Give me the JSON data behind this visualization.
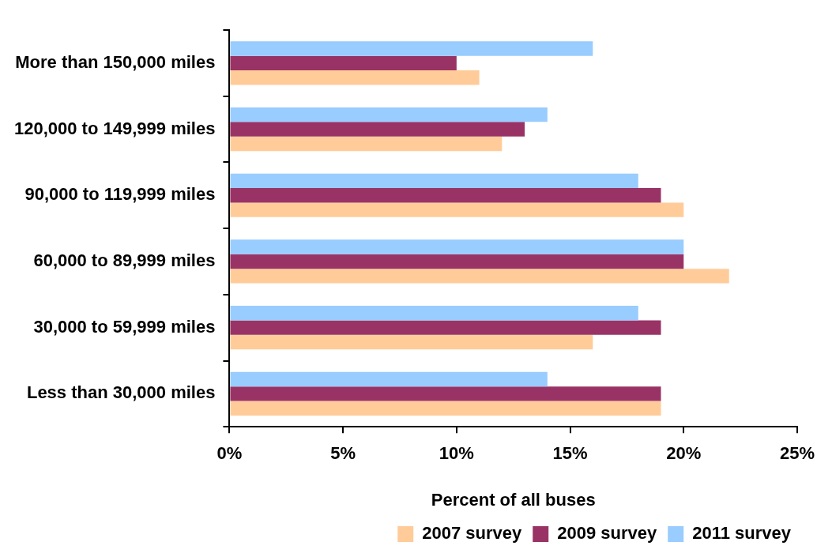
{
  "chart_data": {
    "type": "bar",
    "orientation": "horizontal",
    "xlabel": "Percent of all buses",
    "categories": [
      "More than 150,000 miles",
      "120,000 to 149,999 miles",
      "90,000 to 119,999 miles",
      "60,000 to 89,999 miles",
      "30,000 to 59,999 miles",
      "Less than 30,000 miles"
    ],
    "series": [
      {
        "name": "2007 survey",
        "color": "#ffcc99",
        "values": [
          11,
          12,
          20,
          22,
          16,
          19
        ]
      },
      {
        "name": "2009 survey",
        "color": "#993366",
        "values": [
          10,
          13,
          19,
          20,
          19,
          19
        ]
      },
      {
        "name": "2011 survey",
        "color": "#99ccff",
        "values": [
          16,
          14,
          18,
          20,
          18,
          14
        ]
      }
    ],
    "xlim": [
      0,
      25
    ],
    "xticks": [
      {
        "value": 0,
        "label": "0%"
      },
      {
        "value": 5,
        "label": "5%"
      },
      {
        "value": 10,
        "label": "10%"
      },
      {
        "value": 15,
        "label": "15%"
      },
      {
        "value": 20,
        "label": "20%"
      },
      {
        "value": 25,
        "label": "25%"
      }
    ],
    "grid": false,
    "legend": "bottom"
  }
}
